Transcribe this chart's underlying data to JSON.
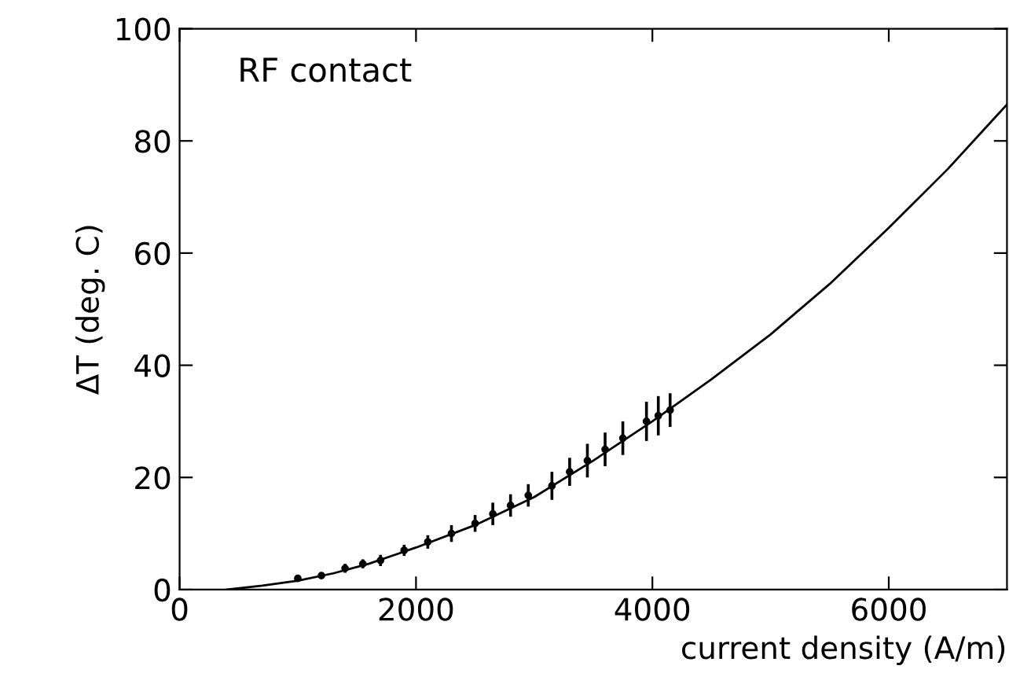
{
  "chart_data": {
    "type": "line",
    "xlabel": "current density (A/m)",
    "ylabel": "ΔT (deg. C)",
    "annotations": [
      "RF contact"
    ],
    "xlim": [
      0,
      7000
    ],
    "ylim": [
      0,
      100
    ],
    "xticks": [
      0,
      2000,
      4000,
      6000
    ],
    "yticks": [
      0,
      20,
      40,
      60,
      80,
      100
    ],
    "grid": false,
    "legend": false,
    "series": [
      {
        "color": "#000000",
        "line_style": "solid",
        "marker": "none",
        "x": [
          400,
          700,
          1000,
          1300,
          1600,
          2000,
          2500,
          3000,
          3500,
          4000,
          4500,
          5000,
          5500,
          6000,
          6500,
          7000
        ],
        "values": [
          0,
          0.7,
          1.6,
          2.9,
          4.6,
          7.5,
          11.5,
          16.5,
          23,
          30,
          37.5,
          45.5,
          54.5,
          64.5,
          75,
          86.5
        ]
      },
      {
        "type": "scatter",
        "color": "#000000",
        "marker": "circle",
        "x": [
          1000,
          1200,
          1400,
          1550,
          1700,
          1900,
          2100,
          2300,
          2500,
          2650,
          2800,
          2950,
          3150,
          3300,
          3450,
          3600,
          3750,
          3950,
          4050,
          4150
        ],
        "values": [
          2,
          2.5,
          3.8,
          4.6,
          5.2,
          7,
          8.5,
          10,
          11.8,
          13.5,
          15,
          16.8,
          18.5,
          21,
          23,
          25,
          27,
          30,
          31,
          32
        ],
        "errors": [
          0.5,
          0.5,
          0.8,
          0.8,
          1,
          1,
          1.2,
          1.5,
          1.5,
          2,
          2,
          2,
          2.5,
          2.5,
          3,
          3,
          3,
          3.5,
          3.5,
          3
        ]
      }
    ]
  }
}
